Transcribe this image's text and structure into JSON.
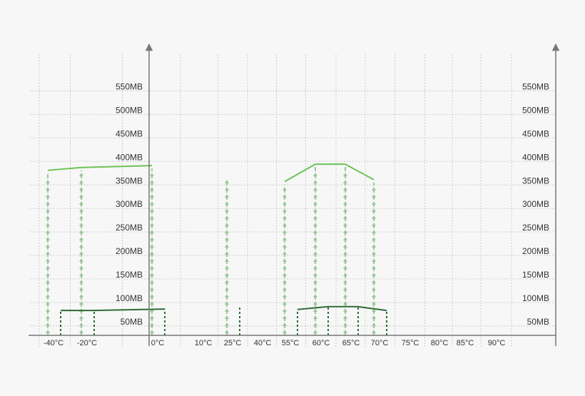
{
  "chart_data": {
    "type": "line",
    "categories": [
      "-40°C",
      "-20°C",
      "0°C",
      "10°C",
      "25°C",
      "40°C",
      "55°C",
      "60°C",
      "65°C",
      "70°C",
      "75°C",
      "80°C",
      "85°C",
      "90°C"
    ],
    "series": [
      {
        "color": "#6cc255",
        "values": [
          381,
          387,
          391,
          null,
          370,
          null,
          357,
          394,
          394,
          361,
          null,
          null,
          null,
          null
        ]
      },
      {
        "color": "#2e6b35",
        "axis": "y2",
        "values": [
          83,
          83,
          86,
          null,
          89,
          null,
          85,
          91,
          91,
          83,
          null,
          null,
          null,
          null
        ]
      }
    ],
    "ylim": [
      30,
      640
    ],
    "yticks": [
      {
        "value": 50,
        "label": "50MB"
      },
      {
        "value": 100,
        "label": "100MB"
      },
      {
        "value": 150,
        "label": "150MB"
      },
      {
        "value": 200,
        "label": "200MB"
      },
      {
        "value": 250,
        "label": "250MB"
      },
      {
        "value": 300,
        "label": "300MB"
      },
      {
        "value": 350,
        "label": "350MB"
      },
      {
        "value": 400,
        "label": "400MB"
      },
      {
        "value": 450,
        "label": "450MB"
      },
      {
        "value": 500,
        "label": "500MB"
      },
      {
        "value": 550,
        "label": "550MB"
      }
    ],
    "y2lim": [
      30,
      640
    ],
    "y2ticks": [
      {
        "value": 50,
        "label": "50MB"
      },
      {
        "value": 100,
        "label": "100MB"
      },
      {
        "value": 150,
        "label": "150MB"
      },
      {
        "value": 200,
        "label": "200MB"
      },
      {
        "value": 250,
        "label": "250MB"
      },
      {
        "value": 300,
        "label": "300MB"
      },
      {
        "value": 350,
        "label": "350MB"
      },
      {
        "value": 400,
        "label": "400MB"
      },
      {
        "value": 450,
        "label": "450MB"
      },
      {
        "value": 500,
        "label": "500MB"
      },
      {
        "value": 550,
        "label": "550MB"
      }
    ],
    "grid": true
  }
}
